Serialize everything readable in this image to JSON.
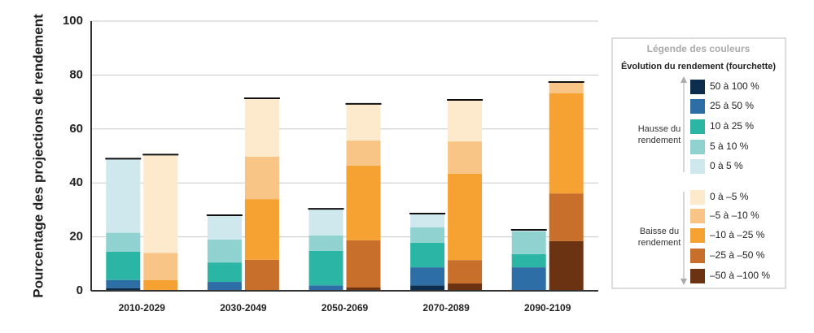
{
  "chart_data": {
    "type": "bar",
    "y_label": "Pourcentage des projections de rendement",
    "categories": [
      "2010-2029",
      "2030-2049",
      "2050-2069",
      "2070-2089",
      "2090-2109"
    ],
    "ylim": [
      0,
      100
    ],
    "yticks": [
      0,
      20,
      40,
      60,
      80,
      100
    ],
    "grid": true,
    "legend_title": "Légende des couleurs",
    "legend_subtitle": "Évolution du rendement (fourchette)",
    "groups": [
      {
        "label": "Hausse du rendement",
        "series": [
          {
            "name": "50 à 100 %",
            "color": "#0d2d4f",
            "values": [
              1,
              0,
              0,
              2,
              0
            ]
          },
          {
            "name": "25 à 50 %",
            "color": "#2e6ea6",
            "values": [
              3,
              3.3,
              2,
              6.7,
              8.7
            ]
          },
          {
            "name": "10 à 25 %",
            "color": "#2bb5a5",
            "values": [
              10.5,
              7.2,
              12.8,
              9.1,
              4.9
            ]
          },
          {
            "name": "5 à 10 %",
            "color": "#8fd2cf",
            "values": [
              7,
              8.5,
              5.7,
              5.7,
              8.4
            ]
          },
          {
            "name": "0 à 5 %",
            "color": "#cfe8ee",
            "values": [
              27.5,
              9,
              9.9,
              5.1,
              0.6
            ]
          }
        ]
      },
      {
        "label": "Baisse du rendement",
        "series": [
          {
            "name": "0 à –5 %",
            "color": "#fde9cc",
            "values": [
              36.5,
              21.7,
              13.6,
              15.4,
              0.3
            ]
          },
          {
            "name": "–5 à –10 %",
            "color": "#f9c586",
            "values": [
              10,
              15.7,
              9.3,
              12,
              3.9
            ]
          },
          {
            "name": "–10 à –25 %",
            "color": "#f5a233",
            "values": [
              4,
              22.5,
              27.7,
              32,
              37.1
            ]
          },
          {
            "name": "–25 à –50 %",
            "color": "#c8702b",
            "values": [
              0,
              11.5,
              17.5,
              8.7,
              17.7
            ]
          },
          {
            "name": "–50 à –100 %",
            "color": "#6b3312",
            "values": [
              0,
              0,
              1.2,
              2.7,
              18.4
            ]
          }
        ]
      }
    ]
  }
}
